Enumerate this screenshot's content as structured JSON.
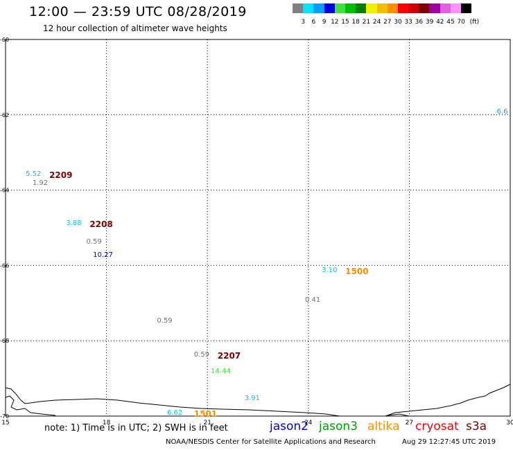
{
  "header": {
    "title": "12:00 — 23:59 UTC 08/28/2019",
    "subtitle": "12 hour collection of altimeter wave heights"
  },
  "legend": {
    "unit": "(ft)",
    "bins": [
      {
        "label": "3",
        "color": "#808080"
      },
      {
        "label": "6",
        "color": "#00e5ff"
      },
      {
        "label": "9",
        "color": "#00a0ff"
      },
      {
        "label": "12",
        "color": "#0000e0"
      },
      {
        "label": "15",
        "color": "#40e040"
      },
      {
        "label": "18",
        "color": "#00c000"
      },
      {
        "label": "21",
        "color": "#008000"
      },
      {
        "label": "24",
        "color": "#f0f000"
      },
      {
        "label": "27",
        "color": "#f0c000"
      },
      {
        "label": "30",
        "color": "#ff9000"
      },
      {
        "label": "33",
        "color": "#ff0000"
      },
      {
        "label": "36",
        "color": "#d00000"
      },
      {
        "label": "39",
        "color": "#800000"
      },
      {
        "label": "42",
        "color": "#a000a0"
      },
      {
        "label": "45",
        "color": "#e060e0"
      },
      {
        "label": "70",
        "color": "#ff90ff"
      },
      {
        "label": "",
        "color": "#000000"
      }
    ]
  },
  "axes": {
    "lon_range": [
      15,
      30
    ],
    "lat_range": [
      -70,
      -60
    ],
    "lon_ticks": [
      "15",
      "18",
      "21",
      "24",
      "27",
      "30"
    ],
    "lat_ticks": [
      "-60",
      "-62",
      "-64",
      "-66",
      "-68",
      "-70"
    ]
  },
  "wave_labels": [
    {
      "text": "5.52",
      "color": "#00c8d8",
      "lon": 15.6,
      "lat": -63.6
    },
    {
      "text": "2209",
      "color": "#800000",
      "lon": 16.3,
      "lat": -63.6,
      "bold": true
    },
    {
      "text": "1.92",
      "color": "#707070",
      "lon": 15.8,
      "lat": -63.85
    },
    {
      "text": "3.88",
      "color": "#00c8d8",
      "lon": 16.8,
      "lat": -64.9
    },
    {
      "text": "2208",
      "color": "#800000",
      "lon": 17.5,
      "lat": -64.9,
      "bold": true
    },
    {
      "text": "0.59",
      "color": "#707070",
      "lon": 17.4,
      "lat": -65.4
    },
    {
      "text": "10.27",
      "color": "#0000c0",
      "lon": 17.6,
      "lat": -65.75
    },
    {
      "text": "3.10",
      "color": "#00c8d8",
      "lon": 24.4,
      "lat": -66.15
    },
    {
      "text": "1500",
      "color": "#ff8c00",
      "lon": 25.1,
      "lat": -66.15,
      "bold": true
    },
    {
      "text": "0.41",
      "color": "#707070",
      "lon": 23.9,
      "lat": -66.95
    },
    {
      "text": "0.59",
      "color": "#707070",
      "lon": 19.5,
      "lat": -67.5
    },
    {
      "text": "0.59",
      "color": "#707070",
      "lon": 20.6,
      "lat": -68.4
    },
    {
      "text": "2207",
      "color": "#800000",
      "lon": 21.3,
      "lat": -68.4,
      "bold": true
    },
    {
      "text": "14.44",
      "color": "#40e040",
      "lon": 21.1,
      "lat": -68.85
    },
    {
      "text": "3.91",
      "color": "#00c8d8",
      "lon": 22.1,
      "lat": -69.55
    },
    {
      "text": "6.62",
      "color": "#00c8d8",
      "lon": 19.8,
      "lat": -69.95
    },
    {
      "text": "1501",
      "color": "#ff8c00",
      "lon": 20.6,
      "lat": -69.95,
      "bold": true
    },
    {
      "text": "6.6",
      "color": "#00a0ff",
      "lon": 29.6,
      "lat": -61.95
    }
  ],
  "footer": {
    "note": "note: 1) Time is in UTC; 2) SWH is in feet",
    "satellites": [
      {
        "name": "jason2",
        "color": "#0000e0"
      },
      {
        "name": "jason3",
        "color": "#00a000"
      },
      {
        "name": "altika",
        "color": "#ff9000"
      },
      {
        "name": "cryosat",
        "color": "#ff0000"
      },
      {
        "name": "s3a",
        "color": "#800000"
      }
    ],
    "credit": "NOAA/NESDIS Center for Satellite Applications and Research",
    "timestamp": "Aug 29 12:27:45 UTC 2019"
  }
}
